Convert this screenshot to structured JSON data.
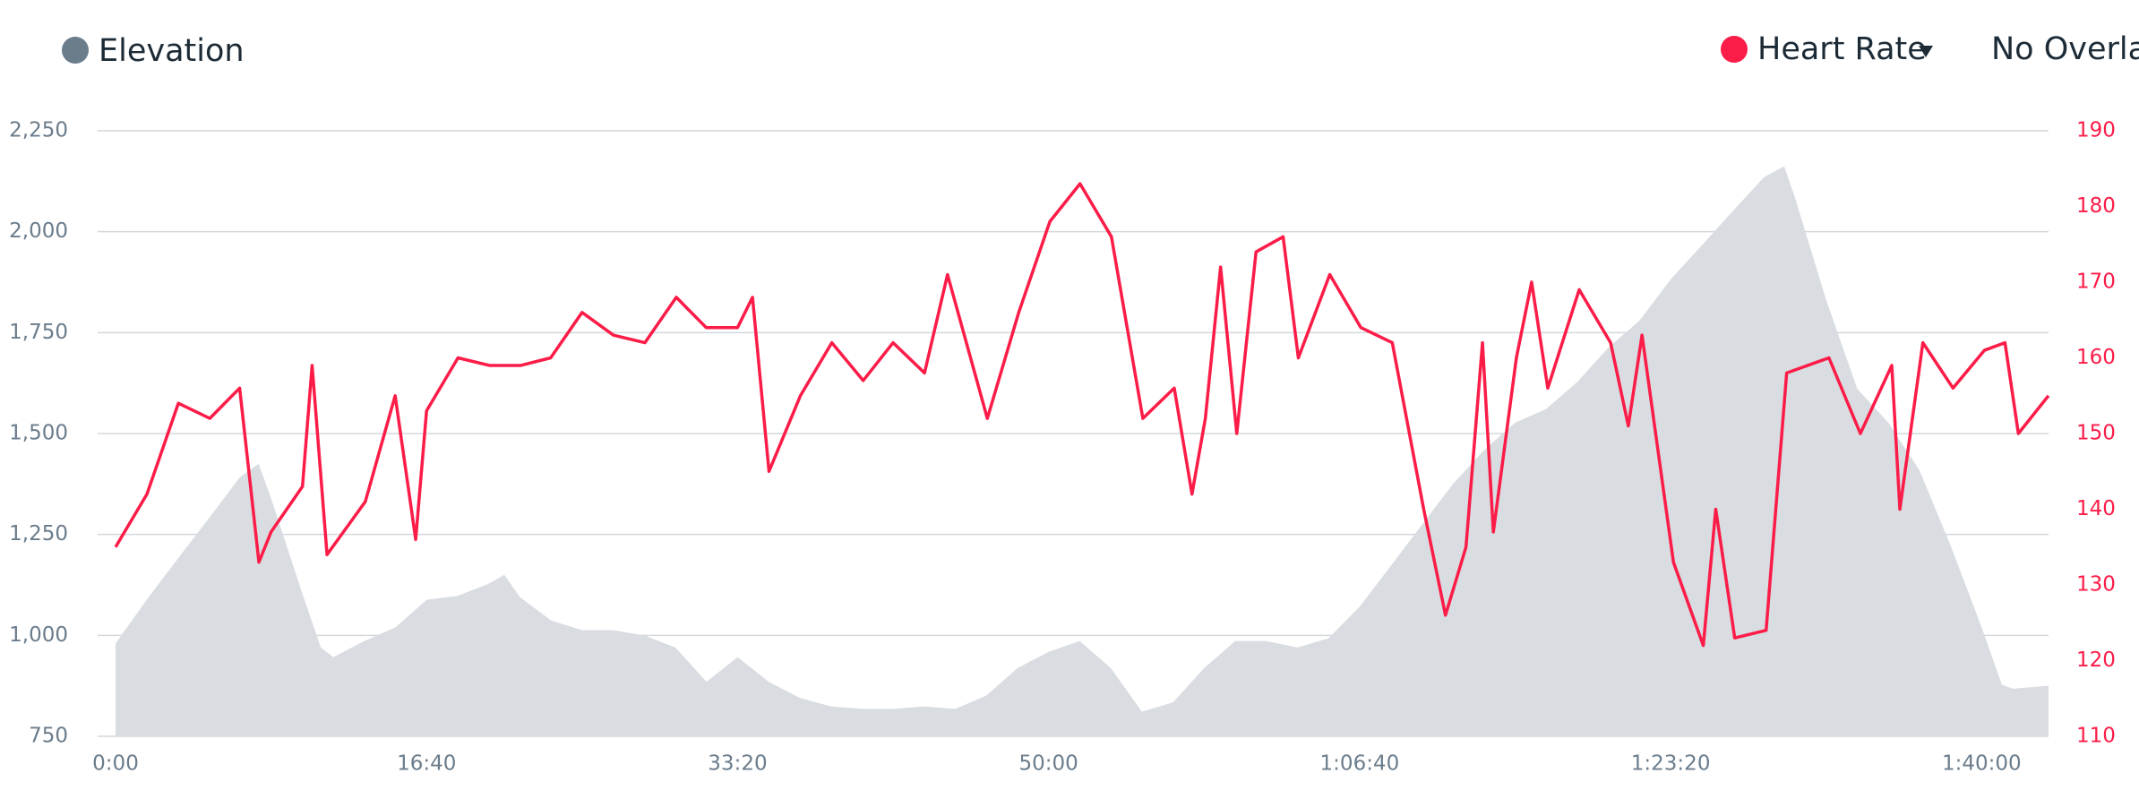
{
  "chart_data": {
    "type": "line",
    "legend": [
      "Elevation",
      "Heart Rate",
      "No Overlay"
    ],
    "xlim": [
      0,
      6215
    ],
    "xticks": [
      {
        "value": 0,
        "label": "0:00"
      },
      {
        "value": 1000,
        "label": "16:40"
      },
      {
        "value": 2000,
        "label": "33:20"
      },
      {
        "value": 3000,
        "label": "50:00"
      },
      {
        "value": 4000,
        "label": "1:06:40"
      },
      {
        "value": 5000,
        "label": "1:23:20"
      },
      {
        "value": 6000,
        "label": "1:40:00"
      }
    ],
    "ylim": [
      750,
      2250
    ],
    "yticks": [
      {
        "value": 750,
        "label": "750"
      },
      {
        "value": 1000,
        "label": "1,000"
      },
      {
        "value": 1250,
        "label": "1,250"
      },
      {
        "value": 1500,
        "label": "1,500"
      },
      {
        "value": 1750,
        "label": "1,750"
      },
      {
        "value": 2000,
        "label": "2,000"
      },
      {
        "value": 2250,
        "label": "2,250"
      }
    ],
    "y2lim": [
      110,
      190
    ],
    "y2ticks": [
      110,
      120,
      130,
      140,
      150,
      160,
      170,
      180,
      190
    ],
    "grid": true,
    "series": [
      {
        "name": "Elevation",
        "kind": "area",
        "color": "#d9dde1",
        "legend_color": "#6b7c8b",
        "x": [
          0,
          100,
          200,
          300,
          400,
          460,
          500,
          600,
          660,
          700,
          800,
          900,
          1000,
          1100,
          1200,
          1250,
          1300,
          1400,
          1500,
          1600,
          1700,
          1800,
          1900,
          2000,
          2100,
          2200,
          2300,
          2400,
          2500,
          2600,
          2700,
          2800,
          2900,
          3000,
          3100,
          3200,
          3300,
          3400,
          3500,
          3600,
          3700,
          3800,
          3900,
          4000,
          4100,
          4200,
          4300,
          4400,
          4500,
          4600,
          4700,
          4800,
          4900,
          5000,
          5100,
          5200,
          5300,
          5365,
          5400,
          5500,
          5600,
          5700,
          5800,
          5900,
          6000,
          6065,
          6100,
          6215
        ],
        "values": [
          980,
          1088,
          1190,
          1290,
          1392,
          1425,
          1340,
          1105,
          970,
          946,
          986,
          1020,
          1088,
          1098,
          1128,
          1150,
          1095,
          1037,
          1013,
          1013,
          1000,
          970,
          885,
          946,
          885,
          845,
          824,
          818,
          818,
          824,
          818,
          851,
          919,
          959,
          986,
          919,
          811,
          834,
          919,
          986,
          986,
          970,
          993,
          1071,
          1172,
          1274,
          1375,
          1459,
          1527,
          1561,
          1628,
          1713,
          1780,
          1882,
          1966,
          2051,
          2135,
          2162,
          2084,
          1831,
          1611,
          1527,
          1409,
          1223,
          1020,
          878,
          868,
          875
        ]
      },
      {
        "name": "Heart Rate",
        "kind": "line",
        "axis": "y2",
        "color": "#fc1c48",
        "x": [
          0,
          101,
          202,
          303,
          399,
          461,
          500,
          601,
          632,
          680,
          803,
          899,
          965,
          1000,
          1101,
          1202,
          1303,
          1399,
          1500,
          1601,
          1702,
          1803,
          1899,
          2000,
          2048,
          2101,
          2202,
          2303,
          2404,
          2500,
          2601,
          2675,
          2803,
          2904,
          3004,
          3101,
          3202,
          3303,
          3404,
          3461,
          3504,
          3553,
          3605,
          3667,
          3754,
          3803,
          3904,
          4004,
          4105,
          4206,
          4276,
          4342,
          4395,
          4430,
          4504,
          4553,
          4605,
          4706,
          4807,
          4864,
          4908,
          5009,
          5105,
          5145,
          5206,
          5307,
          5373,
          5509,
          5610,
          5711,
          5737,
          5811,
          5908,
          6009,
          6075,
          6118,
          6215
        ],
        "values": [
          135,
          142,
          154,
          152,
          156,
          133,
          137,
          143,
          159,
          134,
          141,
          155,
          136,
          153,
          160,
          159,
          159,
          160,
          166,
          163,
          162,
          168,
          164,
          164,
          168,
          145,
          155,
          162,
          157,
          162,
          158,
          171,
          152,
          166,
          178,
          183,
          176,
          152,
          156,
          142,
          152,
          172,
          150,
          174,
          176,
          160,
          171,
          164,
          162,
          140,
          126,
          135,
          162,
          137,
          160,
          170,
          156,
          169,
          162,
          151,
          163,
          133,
          122,
          140,
          123,
          124,
          158,
          160,
          150,
          159,
          140,
          162,
          156,
          161,
          162,
          150,
          155
        ]
      }
    ]
  }
}
